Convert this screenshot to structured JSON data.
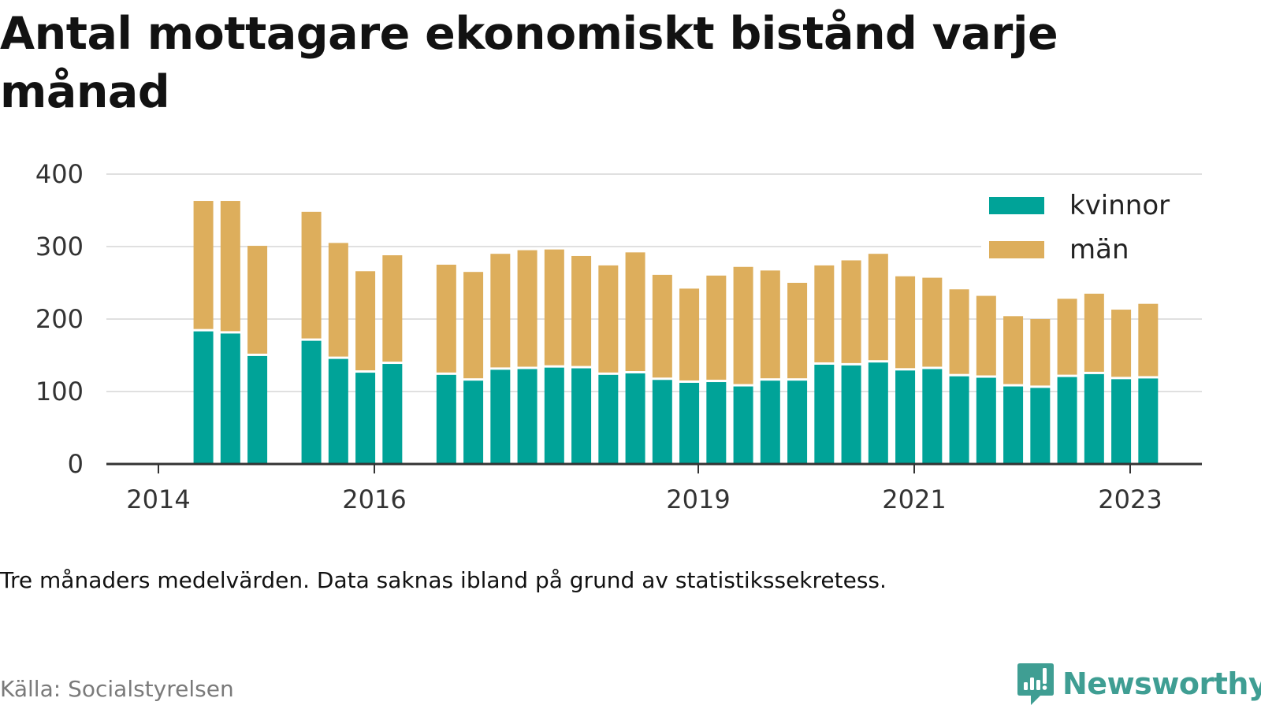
{
  "title": "Antal mottagare ekonomiskt bistånd varje månad",
  "note": "Tre månaders medelvärden. Data saknas ibland på grund av statistikssekretess.",
  "source": "Källa: Socialstyrelsen",
  "brand": "Newsworthy",
  "colors": {
    "kvinnor": "#00a398",
    "man": "#ddae5c",
    "grid": "#e0e0e0",
    "axis": "#333333",
    "brand": "#3f9e93"
  },
  "chart_data": {
    "type": "bar",
    "stacked": true,
    "x_axis": {
      "type": "time",
      "range": [
        "2013-10",
        "2023-06"
      ],
      "ticks": [
        "2014",
        "2016",
        "2019",
        "2021",
        "2023"
      ]
    },
    "y_axis": {
      "range": [
        0,
        400
      ],
      "ticks": [
        0,
        100,
        200,
        300,
        400
      ]
    },
    "grid": true,
    "legend_position": "top-right",
    "categories": [
      "2014-06",
      "2014-09",
      "2014-12",
      "2015-06",
      "2015-09",
      "2015-12",
      "2016-03",
      "2016-09",
      "2016-12",
      "2017-03",
      "2017-06",
      "2017-09",
      "2017-12",
      "2018-03",
      "2018-06",
      "2018-09",
      "2018-12",
      "2019-03",
      "2019-06",
      "2019-09",
      "2019-12",
      "2020-03",
      "2020-06",
      "2020-09",
      "2020-12",
      "2021-03",
      "2021-06",
      "2021-09",
      "2021-12",
      "2022-03",
      "2022-06",
      "2022-09",
      "2022-12",
      "2023-03"
    ],
    "series": [
      {
        "name": "kvinnor",
        "values": [
          183,
          180,
          149,
          170,
          145,
          126,
          138,
          123,
          115,
          130,
          131,
          133,
          132,
          123,
          125,
          116,
          112,
          113,
          107,
          115,
          115,
          137,
          136,
          140,
          129,
          131,
          121,
          119,
          107,
          105,
          120,
          124,
          117,
          118
        ]
      },
      {
        "name": "män",
        "values": [
          180,
          183,
          152,
          178,
          160,
          140,
          150,
          152,
          150,
          160,
          164,
          163,
          155,
          151,
          167,
          145,
          130,
          147,
          165,
          152,
          135,
          137,
          145,
          150,
          130,
          126,
          120,
          113,
          97,
          95,
          108,
          111,
          96,
          103
        ]
      }
    ]
  }
}
